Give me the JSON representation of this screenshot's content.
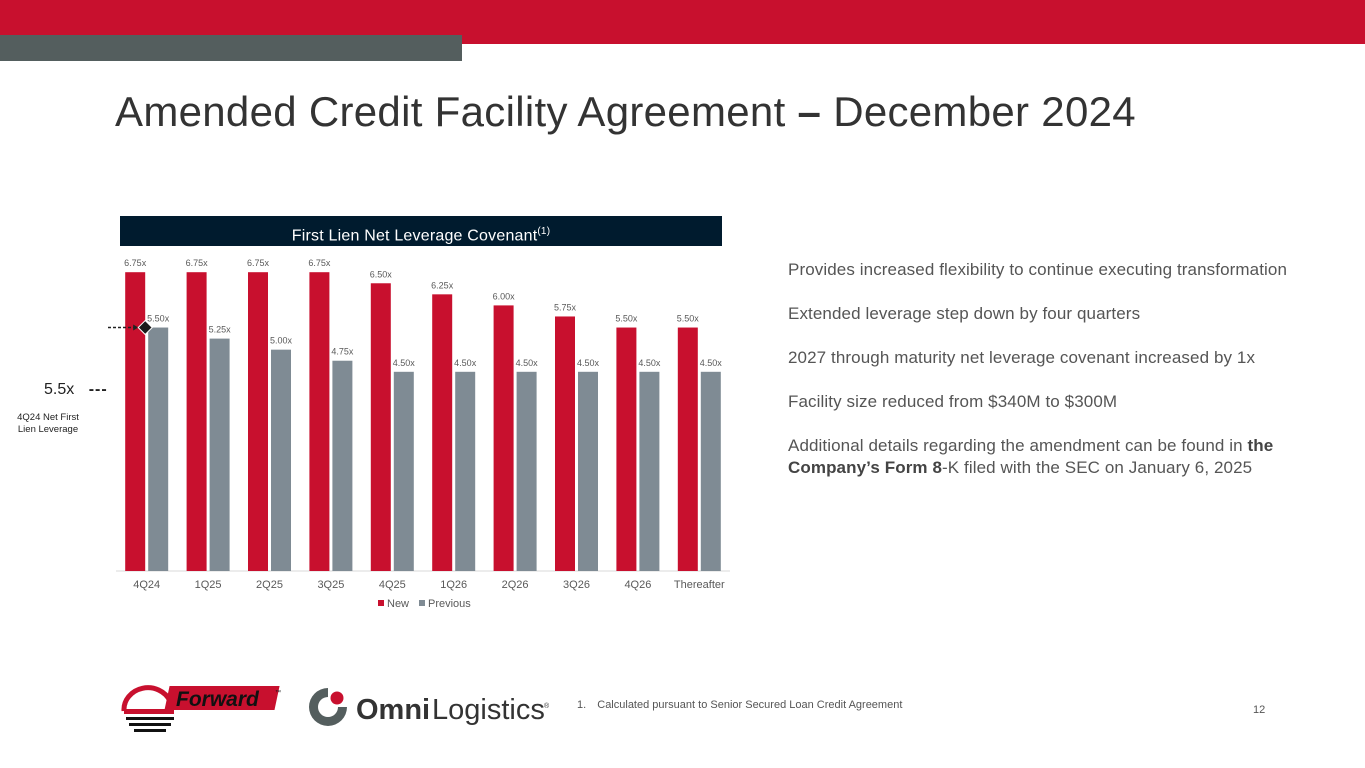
{
  "page": {
    "title_part1": "Amended Credit Facility Agreement",
    "title_dash": "–",
    "title_part2": "December 2024",
    "page_number": "12",
    "footnote_num": "1.",
    "footnote_text": "Calculated pursuant to Senior Secured Loan Credit Agreement"
  },
  "chart_header": {
    "text": "First Lien Net Leverage Covenant",
    "superscript": "(1)"
  },
  "marker": {
    "value_label": "5.5x",
    "arrow": "---",
    "caption": "4Q24 Net First Lien Leverage",
    "value": 5.5,
    "category": "4Q24"
  },
  "chart_data": {
    "type": "bar",
    "title": "First Lien Net Leverage Covenant(1)",
    "categories": [
      "4Q24",
      "1Q25",
      "2Q25",
      "3Q25",
      "4Q25",
      "1Q26",
      "2Q26",
      "3Q26",
      "4Q26",
      "Thereafter"
    ],
    "series": [
      {
        "name": "New",
        "color": "#c8102e",
        "values": [
          6.75,
          6.75,
          6.75,
          6.75,
          6.5,
          6.25,
          6.0,
          5.75,
          5.5,
          5.5
        ],
        "labels": [
          "6.75x",
          "6.75x",
          "6.75x",
          "6.75x",
          "6.50x",
          "6.25x",
          "6.00x",
          "5.75x",
          "5.50x",
          "5.50x"
        ]
      },
      {
        "name": "Previous",
        "color": "#7f8b94",
        "values": [
          5.5,
          5.25,
          5.0,
          4.75,
          4.5,
          4.5,
          4.5,
          4.5,
          4.5,
          4.5
        ],
        "labels": [
          "5.50x",
          "5.25x",
          "5.00x",
          "4.75x",
          "4.50x",
          "4.50x",
          "4.50x",
          "4.50x",
          "4.50x",
          "4.50x"
        ]
      }
    ],
    "ylim": [
      0,
      7.5
    ],
    "grid": false,
    "legend": "bottom-center"
  },
  "bullets": [
    {
      "text": "Provides increased flexibility to continue executing transformation"
    },
    {
      "text": "Extended leverage step down by four quarters"
    },
    {
      "text": "2027 through maturity net leverage covenant increased by 1x"
    },
    {
      "text": "Facility size reduced from $340M to $300M"
    },
    {
      "text_before": "Additional details regarding the amendment can be found in ",
      "bold": "the Company’s Form 8",
      "text_after": "-K filed with the SEC on January 6, 2025"
    }
  ],
  "logos": {
    "forward": {
      "word": "Forward",
      "tm": "™"
    },
    "omni": {
      "word1": "Omni",
      "word2": "Logistics",
      "reg": "®"
    }
  },
  "colors": {
    "brand_red": "#c8102e",
    "band_gray": "#545e5e",
    "header_navy": "#001b2e",
    "previous_gray": "#7f8b94"
  }
}
